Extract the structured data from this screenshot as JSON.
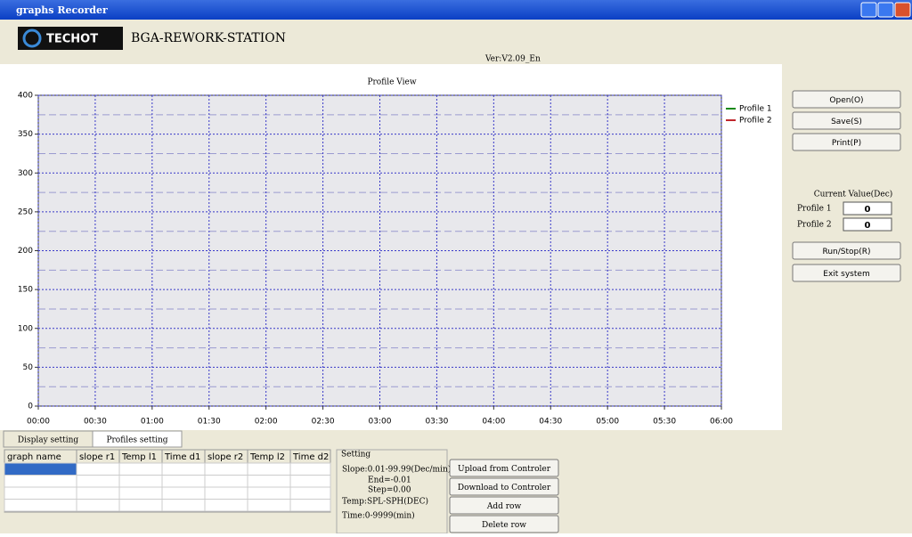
{
  "window": {
    "title": "graphs Recorder"
  },
  "header": {
    "brand": "TECHOT",
    "product": "BGA-REWORK-STATION",
    "version": "Ver:V2.09_En"
  },
  "chart_data": {
    "type": "line",
    "title": "Profile View",
    "xlim": [
      0,
      360
    ],
    "xticks": [
      {
        "value": 0,
        "label": "00:00"
      },
      {
        "value": 30,
        "label": "00:30"
      },
      {
        "value": 60,
        "label": "01:00"
      },
      {
        "value": 90,
        "label": "01:30"
      },
      {
        "value": 120,
        "label": "02:00"
      },
      {
        "value": 150,
        "label": "02:30"
      },
      {
        "value": 180,
        "label": "03:00"
      },
      {
        "value": 210,
        "label": "03:30"
      },
      {
        "value": 240,
        "label": "04:00"
      },
      {
        "value": 270,
        "label": "04:30"
      },
      {
        "value": 300,
        "label": "05:00"
      },
      {
        "value": 330,
        "label": "05:30"
      },
      {
        "value": 360,
        "label": "06:00"
      }
    ],
    "ylim": [
      0,
      400
    ],
    "yticks": [
      0,
      50,
      100,
      150,
      200,
      250,
      300,
      350,
      400
    ],
    "minor_yticks": [
      25,
      75,
      125,
      175,
      225,
      275,
      325,
      375
    ],
    "grid": true,
    "legend": "right",
    "series": [
      {
        "name": "Profile 1",
        "color": "#1a8a1a",
        "x": [],
        "values": []
      },
      {
        "name": "Profile 2",
        "color": "#c0262c",
        "x": [],
        "values": []
      }
    ]
  },
  "side": {
    "buttons": [
      "Open(O)",
      "Save(S)",
      "Print(P)"
    ],
    "current_title": "Current Value(Dec)",
    "current": [
      {
        "label": "Profile 1",
        "value": 0
      },
      {
        "label": "Profile 2",
        "value": 0
      }
    ],
    "actions": [
      "Run/Stop(R)",
      "Exit system"
    ]
  },
  "tabs": [
    "Display setting",
    "Profiles setting"
  ],
  "table": {
    "headers": [
      "graph name",
      "slope r1",
      "Temp l1",
      "Time d1",
      "slope r2",
      "Temp l2",
      "Time d2"
    ]
  },
  "setting": {
    "title": "Setting",
    "lines": [
      "Slope:0.01-99.99(Dec/min)",
      "End=-0.01",
      "Step=0.00",
      "Temp:SPL-SPH(DEC)",
      "Time:0-9999(min)"
    ],
    "buttons": [
      "Upload from Controler",
      "Download to Controler",
      "Add row",
      "Delete row"
    ]
  }
}
